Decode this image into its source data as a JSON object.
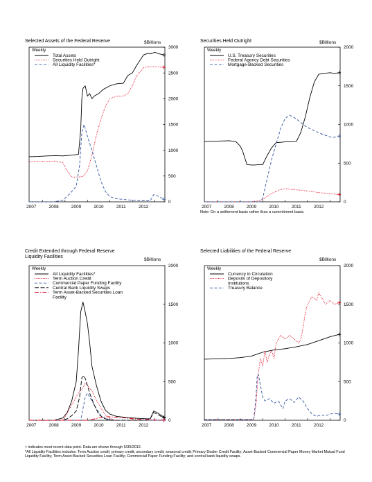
{
  "footnotes": {
    "recent": "+ indicates most recent data point. Data are shown through 5/30/2012.",
    "liquidity": "*All Liquidity Facilities includes: Term Auction credit; primary credit; secondary credit; seasonal credit; Primary Dealer Credit Facility; Asset-Backed Commercial Paper Money Market Mutual Fund Liquidity Facility; Term Asset-Backed Securities Loan Facility; Commercial Paper Funding Facility; and central bank liquidity swaps."
  },
  "colors": {
    "black": "#000000",
    "red": "#e0001b",
    "blue": "#3b5ba5"
  },
  "chart_data": [
    {
      "id": "assets",
      "type": "line",
      "title": "Selected Assets of the Federal Reserve",
      "unit": "$Billions",
      "frequency": "Weekly",
      "ylim": [
        0,
        3000
      ],
      "yticks": [
        "0",
        "500",
        "1000",
        "1500",
        "2000",
        "2500",
        "3000"
      ],
      "xlim": [
        2006.4,
        2012.45
      ],
      "xticks": [
        "2007",
        "2008",
        "2009",
        "2010",
        "2011",
        "2012"
      ],
      "note": "",
      "series": [
        {
          "name": "Total Assets",
          "color": "black",
          "dash": "solid",
          "x": [
            2006.4,
            2006.8,
            2007.2,
            2007.6,
            2007.9,
            2008.3,
            2008.6,
            2008.7,
            2008.75,
            2008.8,
            2008.9,
            2009.0,
            2009.1,
            2009.2,
            2009.3,
            2009.5,
            2009.7,
            2010.0,
            2010.3,
            2010.6,
            2010.8,
            2011.0,
            2011.2,
            2011.5,
            2011.7,
            2011.8,
            2012.0,
            2012.2,
            2012.41
          ],
          "y": [
            875,
            880,
            890,
            895,
            890,
            905,
            920,
            1400,
            2000,
            2200,
            2250,
            2050,
            2100,
            2000,
            2050,
            2100,
            2180,
            2250,
            2290,
            2300,
            2450,
            2500,
            2650,
            2850,
            2880,
            2870,
            2900,
            2870,
            2850
          ]
        },
        {
          "name": "Securities Held Outright",
          "color": "red",
          "dash": "dot",
          "x": [
            2006.4,
            2007.0,
            2007.6,
            2007.9,
            2008.1,
            2008.3,
            2008.6,
            2008.8,
            2009.0,
            2009.2,
            2009.4,
            2009.6,
            2009.8,
            2010.0,
            2010.3,
            2010.6,
            2010.8,
            2011.0,
            2011.2,
            2011.5,
            2011.7,
            2012.0,
            2012.41
          ],
          "y": [
            780,
            785,
            790,
            760,
            600,
            480,
            480,
            490,
            600,
            900,
            1300,
            1600,
            1850,
            2000,
            2050,
            2050,
            2100,
            2250,
            2450,
            2600,
            2620,
            2620,
            2610
          ]
        },
        {
          "name": "All Liquidity Facilities*",
          "color": "blue",
          "dash": "dash",
          "x": [
            2006.4,
            2007.5,
            2007.9,
            2008.2,
            2008.5,
            2008.65,
            2008.75,
            2008.85,
            2008.95,
            2009.05,
            2009.2,
            2009.4,
            2009.6,
            2009.8,
            2010.0,
            2010.3,
            2011.0,
            2011.5,
            2011.8,
            2011.95,
            2012.1,
            2012.41
          ],
          "y": [
            0,
            0,
            30,
            150,
            300,
            700,
            1350,
            1500,
            1350,
            1200,
            1000,
            700,
            400,
            200,
            100,
            60,
            30,
            20,
            20,
            140,
            120,
            50
          ]
        }
      ]
    },
    {
      "id": "securities",
      "type": "line",
      "title": "Securities Held Outright",
      "unit": "$Billions",
      "frequency": "Weekly",
      "ylim": [
        0,
        2000
      ],
      "yticks": [
        "0",
        "500",
        "1000",
        "1500",
        "2000"
      ],
      "xlim": [
        2006.4,
        2012.45
      ],
      "xticks": [
        "2007",
        "2008",
        "2009",
        "2010",
        "2011",
        "2012"
      ],
      "note": "Note: On a settlement basis rather than a commitment basis.",
      "series": [
        {
          "name": "U.S. Treasury Securities",
          "color": "black",
          "dash": "solid",
          "x": [
            2006.4,
            2007.0,
            2007.5,
            2007.8,
            2008.0,
            2008.1,
            2008.3,
            2008.6,
            2008.8,
            2009.0,
            2009.2,
            2009.4,
            2009.6,
            2009.8,
            2010.0,
            2010.5,
            2010.7,
            2010.9,
            2011.1,
            2011.3,
            2011.5,
            2011.7,
            2012.0,
            2012.2,
            2012.41
          ],
          "y": [
            780,
            785,
            790,
            780,
            720,
            660,
            480,
            475,
            480,
            480,
            600,
            700,
            765,
            770,
            775,
            780,
            900,
            1100,
            1350,
            1550,
            1650,
            1660,
            1670,
            1660,
            1670
          ]
        },
        {
          "name": "Federal Agency Debt Securities",
          "color": "red",
          "dash": "dot",
          "x": [
            2006.4,
            2008.5,
            2008.9,
            2009.1,
            2009.4,
            2009.8,
            2010.0,
            2010.3,
            2010.7,
            2011.0,
            2011.5,
            2012.0,
            2012.41
          ],
          "y": [
            0,
            0,
            20,
            50,
            110,
            160,
            170,
            160,
            150,
            140,
            120,
            105,
            95
          ]
        },
        {
          "name": "Mortgage-Backed Securities",
          "color": "blue",
          "dash": "dash",
          "x": [
            2006.4,
            2008.9,
            2009.0,
            2009.2,
            2009.4,
            2009.6,
            2009.8,
            2010.0,
            2010.2,
            2010.4,
            2010.6,
            2010.8,
            2011.0,
            2011.3,
            2011.6,
            2011.9,
            2012.1,
            2012.41
          ],
          "y": [
            0,
            0,
            50,
            300,
            550,
            750,
            950,
            1080,
            1120,
            1090,
            1050,
            1000,
            960,
            920,
            880,
            850,
            830,
            850
          ]
        }
      ]
    },
    {
      "id": "credit",
      "type": "line",
      "title": "Credit Extended through Federal Reserve Liquidity Facilities",
      "unit": "$Billions",
      "frequency": "Weekly",
      "ylim": [
        0,
        2000
      ],
      "yticks": [
        "0",
        "500",
        "1000",
        "1500",
        "2000"
      ],
      "xlim": [
        2006.4,
        2012.45
      ],
      "xticks": [
        "2007",
        "2008",
        "2009",
        "2010",
        "2011",
        "2012"
      ],
      "note": "",
      "series": [
        {
          "name": "All Liquidity Facilities*",
          "color": "black",
          "dash": "solid",
          "x": [
            2006.4,
            2007.5,
            2007.9,
            2008.1,
            2008.3,
            2008.5,
            2008.6,
            2008.7,
            2008.8,
            2008.9,
            2009.0,
            2009.1,
            2009.2,
            2009.4,
            2009.6,
            2009.8,
            2010.0,
            2010.3,
            2011.0,
            2011.6,
            2011.8,
            2011.95,
            2012.1,
            2012.41
          ],
          "y": [
            0,
            0,
            30,
            100,
            250,
            500,
            900,
            1400,
            1530,
            1400,
            1250,
            1000,
            700,
            450,
            250,
            130,
            80,
            50,
            30,
            20,
            20,
            120,
            100,
            40
          ]
        },
        {
          "name": "Term Auction Credit",
          "color": "red",
          "dash": "dot",
          "x": [
            2006.4,
            2007.9,
            2008.0,
            2008.2,
            2008.4,
            2008.6,
            2008.8,
            2008.9,
            2009.0,
            2009.2,
            2009.4,
            2009.6,
            2009.8,
            2010.1,
            2010.3,
            2012.41
          ],
          "y": [
            0,
            0,
            40,
            150,
            250,
            350,
            420,
            480,
            450,
            380,
            260,
            160,
            70,
            10,
            0,
            0
          ]
        },
        {
          "name": "Commercial Paper Funding Facility",
          "color": "blue",
          "dash": "dash",
          "x": [
            2006.4,
            2008.7,
            2008.8,
            2008.9,
            2009.0,
            2009.1,
            2009.2,
            2009.4,
            2009.6,
            2009.8,
            2010.0,
            2010.2,
            2012.41
          ],
          "y": [
            0,
            0,
            150,
            300,
            350,
            300,
            250,
            150,
            60,
            20,
            10,
            0,
            0
          ]
        },
        {
          "name": "Central Bank Liquidity Swaps",
          "color": "black",
          "dash": "longdash",
          "x": [
            2006.4,
            2007.9,
            2008.1,
            2008.3,
            2008.5,
            2008.65,
            2008.75,
            2008.85,
            2008.95,
            2009.1,
            2009.3,
            2009.5,
            2009.7,
            2009.9,
            2010.1,
            2010.5,
            2011.0,
            2011.6,
            2011.8,
            2011.95,
            2012.1,
            2012.41
          ],
          "y": [
            0,
            0,
            20,
            60,
            120,
            300,
            550,
            580,
            500,
            350,
            200,
            80,
            30,
            10,
            0,
            0,
            0,
            0,
            20,
            100,
            80,
            30
          ]
        },
        {
          "name": "Term Asset-Backed Securities Loan Facility",
          "color": "red",
          "dash": "dashdot",
          "x": [
            2006.4,
            2009.0,
            2009.2,
            2009.5,
            2009.8,
            2010.0,
            2010.5,
            2011.0,
            2011.5,
            2012.0,
            2012.41
          ],
          "y": [
            0,
            0,
            10,
            30,
            45,
            45,
            35,
            20,
            10,
            5,
            5
          ]
        }
      ]
    },
    {
      "id": "liabilities",
      "type": "line",
      "title": "Selected Liabilities of the Federal Reserve",
      "unit": "$Billions",
      "frequency": "Weekly",
      "ylim": [
        0,
        2000
      ],
      "yticks": [
        "0",
        "500",
        "1000",
        "1500",
        "2000"
      ],
      "xlim": [
        2006.4,
        2012.45
      ],
      "xticks": [
        "2007",
        "2008",
        "2009",
        "2010",
        "2011",
        "2012"
      ],
      "note": "",
      "series": [
        {
          "name": "Currency in Circulation",
          "color": "black",
          "dash": "solid",
          "x": [
            2006.4,
            2007.0,
            2007.5,
            2008.0,
            2008.5,
            2008.8,
            2009.0,
            2009.5,
            2010.0,
            2010.5,
            2011.0,
            2011.5,
            2012.0,
            2012.41
          ],
          "y": [
            790,
            795,
            800,
            810,
            830,
            860,
            880,
            910,
            925,
            950,
            980,
            1030,
            1080,
            1110
          ]
        },
        {
          "name": "Deposits of Depository Institutions",
          "color": "red",
          "dash": "dot",
          "x": [
            2006.4,
            2008.6,
            2008.7,
            2008.8,
            2008.9,
            2009.0,
            2009.1,
            2009.2,
            2009.3,
            2009.4,
            2009.5,
            2009.6,
            2009.8,
            2010.0,
            2010.2,
            2010.4,
            2010.6,
            2010.7,
            2010.8,
            2010.9,
            2011.0,
            2011.2,
            2011.4,
            2011.5,
            2011.6,
            2011.8,
            2012.0,
            2012.2,
            2012.41
          ],
          "y": [
            10,
            10,
            200,
            600,
            800,
            700,
            900,
            750,
            850,
            900,
            800,
            1000,
            1100,
            1050,
            1100,
            1050,
            1000,
            1050,
            1200,
            1400,
            1500,
            1600,
            1550,
            1650,
            1600,
            1500,
            1550,
            1500,
            1520
          ]
        },
        {
          "name": "Treasury Balance",
          "color": "blue",
          "dash": "dash",
          "x": [
            2006.4,
            2008.6,
            2008.7,
            2008.75,
            2008.8,
            2008.9,
            2009.0,
            2009.1,
            2009.3,
            2009.5,
            2009.7,
            2009.9,
            2010.0,
            2010.2,
            2010.4,
            2010.6,
            2010.8,
            2011.0,
            2011.2,
            2011.4,
            2011.6,
            2011.8,
            2012.0,
            2012.2,
            2012.41
          ],
          "y": [
            10,
            10,
            300,
            560,
            600,
            450,
            300,
            250,
            280,
            220,
            250,
            150,
            250,
            280,
            230,
            300,
            250,
            150,
            80,
            50,
            70,
            60,
            80,
            90,
            80
          ]
        }
      ]
    }
  ]
}
